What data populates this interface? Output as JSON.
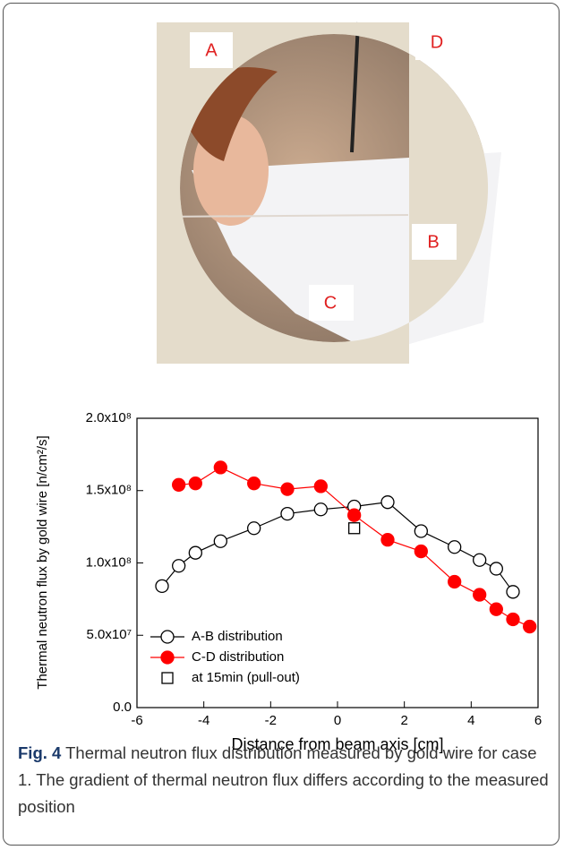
{
  "photo": {
    "labels": [
      "A",
      "D",
      "B",
      "C"
    ]
  },
  "chart_data": {
    "type": "line",
    "xlabel": "Distance from beam axis [cm]",
    "ylabel": "Thermal neutron flux by gold wire [n/cm²/s]",
    "xlim": [
      -6,
      6
    ],
    "xticks": [
      -6,
      -4,
      -2,
      0,
      2,
      4,
      6
    ],
    "ylim": [
      0,
      200000000
    ],
    "yticks": [
      {
        "value": 0,
        "label": "0.0"
      },
      {
        "value": 50000000,
        "label": "5.0x10⁷"
      },
      {
        "value": 100000000,
        "label": "1.0x10⁸"
      },
      {
        "value": 150000000,
        "label": "1.5x10⁸"
      },
      {
        "value": 200000000,
        "label": "2.0x10⁸"
      }
    ],
    "legend": "lower left",
    "series": [
      {
        "name": "A-B distribution",
        "color": "#000000",
        "marker": "open-circle",
        "x": [
          -5.25,
          -4.75,
          -4.25,
          -3.5,
          -2.5,
          -1.5,
          -0.5,
          0.5,
          1.5,
          2.5,
          3.5,
          4.25,
          4.75,
          5.25
        ],
        "values": [
          84000000,
          98000000,
          107000000,
          115000000,
          124000000,
          134000000,
          137000000,
          139000000,
          142000000,
          122000000,
          111000000,
          102000000,
          96000000,
          80000000
        ]
      },
      {
        "name": "C-D distribution",
        "color": "#ff0000",
        "marker": "filled-circle",
        "x": [
          -4.75,
          -4.25,
          -3.5,
          -2.5,
          -1.5,
          -0.5,
          0.5,
          1.5,
          2.5,
          3.5,
          4.25,
          4.75,
          5.25,
          5.75
        ],
        "values": [
          154000000,
          155000000,
          166000000,
          155000000,
          151000000,
          153000000,
          133000000,
          116000000,
          108000000,
          87000000,
          78000000,
          68000000,
          61000000,
          56000000
        ]
      },
      {
        "name": "at 15min (pull-out)",
        "color": "#000000",
        "marker": "open-square",
        "x": [
          0.5
        ],
        "values": [
          124000000
        ]
      }
    ]
  },
  "caption": {
    "label": "Fig. 4",
    "text": "Thermal neutron flux distribution measured by gold wire for case 1. The gradient of thermal neutron flux differs according to the measured position"
  }
}
